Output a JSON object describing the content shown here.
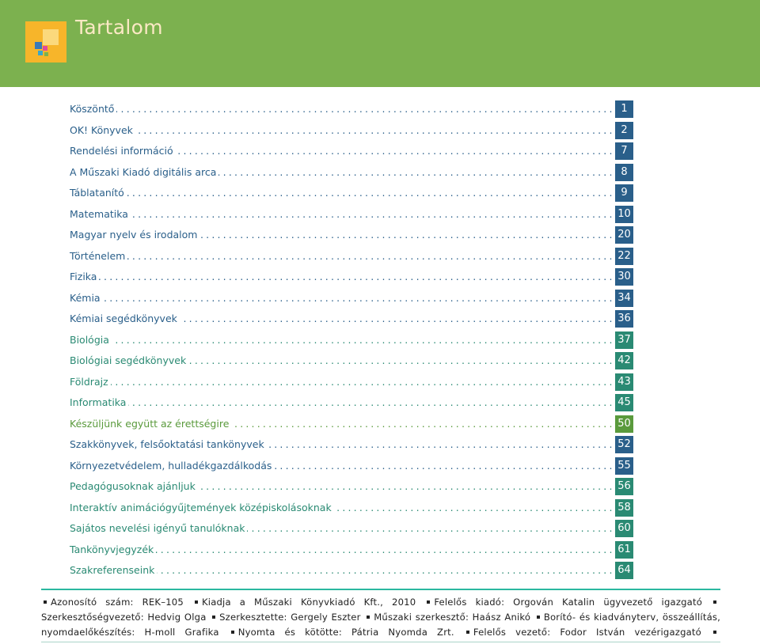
{
  "header": {
    "title": "Tartalom",
    "color": "#7cb14f",
    "logo_icon": "colored-squares-logo"
  },
  "toc": [
    {
      "label": "Köszöntő",
      "page": "1",
      "color": "#2a5f8a"
    },
    {
      "label": "OK! Könyvek",
      "page": "2",
      "color": "#2a5f8a"
    },
    {
      "label": "Rendelési információ",
      "page": "7",
      "color": "#2a5f8a"
    },
    {
      "label": "A Műszaki Kiadó digitális arca",
      "page": "8",
      "color": "#2a5f8a"
    },
    {
      "label": "Táblatanító",
      "page": "9",
      "color": "#2a5f8a"
    },
    {
      "label": "Matematika",
      "page": "10",
      "color": "#2a5f8a"
    },
    {
      "label": "Magyar nyelv és irodalom",
      "page": "20",
      "color": "#2a5f8a"
    },
    {
      "label": "Történelem",
      "page": "22",
      "color": "#2a5f8a"
    },
    {
      "label": "Fizika",
      "page": "30",
      "color": "#2a5f8a"
    },
    {
      "label": "Kémia",
      "page": "34",
      "color": "#2a5f8a"
    },
    {
      "label": "Kémiai segédkönyvek",
      "page": "36",
      "color": "#2a5f8a"
    },
    {
      "label": "Biológia",
      "page": "37",
      "color": "#2a8a73"
    },
    {
      "label": "Biológiai segédkönyvek",
      "page": "42",
      "color": "#2a8a73"
    },
    {
      "label": "Földrajz",
      "page": "43",
      "color": "#2a8a73"
    },
    {
      "label": "Informatika",
      "page": "45",
      "color": "#2a8a73"
    },
    {
      "label": "Készüljünk együtt az érettségire",
      "page": "50",
      "color": "#5a9a3c"
    },
    {
      "label": "Szakkönyvek, felsőoktatási tankönyvek",
      "page": "52",
      "color": "#2a5f8a"
    },
    {
      "label": "Környezetvédelem, hulladékgazdálkodás",
      "page": "55",
      "color": "#2a5f8a"
    },
    {
      "label": "Pedagógusoknak ajánljuk",
      "page": "56",
      "color": "#2a8a73"
    },
    {
      "label": "Interaktív animációgyűjtemények középiskolásoknak",
      "page": "58",
      "color": "#2a8a73"
    },
    {
      "label": "Sajátos nevelési igényű tanulóknak",
      "page": "60",
      "color": "#2a8a73"
    },
    {
      "label": "Tankönyvjegyzék",
      "page": "61",
      "color": "#2a8a73"
    },
    {
      "label": "Szakreferenseink",
      "page": "64",
      "color": "#2a8a73"
    }
  ],
  "footer": {
    "items": [
      "Azonosító szám: REK–105",
      "Kiadja a Műszaki Könyvkiadó Kft., 2010",
      "Felelős kiadó: Orgován Katalin ügyvezető igazgató",
      "Szerkesztőségvezető: Hedvig Olga",
      "Szerkesztette: Gergely Eszter",
      "Műszaki szerkesztő: Haász Anikó",
      "Borító- és kiadványterv, összeállítás, nyomdaelőkészítés: H-moll Grafika",
      "Nyomta és kötötte: Pátria Nyomda Zrt.",
      "Felelős vezető: Fodor István vezérigazgató"
    ]
  }
}
